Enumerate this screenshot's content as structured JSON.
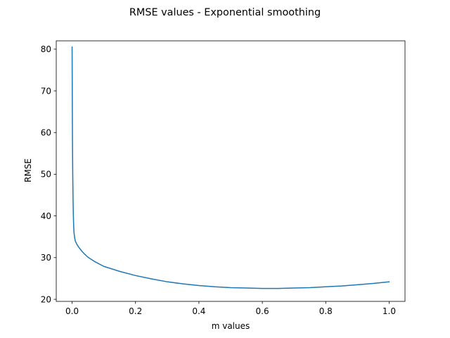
{
  "chart_data": {
    "type": "line",
    "title": "RMSE values - Exponential smoothing",
    "xlabel": "m values",
    "ylabel": "RMSE",
    "xlim": [
      -0.05,
      1.05
    ],
    "ylim": [
      19.5,
      82
    ],
    "xticks": [
      0.0,
      0.2,
      0.4,
      0.6,
      0.8,
      1.0
    ],
    "xtick_labels": [
      "0.0",
      "0.2",
      "0.4",
      "0.6",
      "0.8",
      "1.0"
    ],
    "yticks": [
      20,
      30,
      40,
      50,
      60,
      70,
      80
    ],
    "ytick_labels": [
      "20",
      "30",
      "40",
      "50",
      "60",
      "70",
      "80"
    ],
    "grid": false,
    "legend": "none",
    "series": [
      {
        "color": "#1f77b4",
        "x": [
          0.0,
          0.001,
          0.002,
          0.003,
          0.004,
          0.005,
          0.006,
          0.008,
          0.01,
          0.015,
          0.02,
          0.03,
          0.04,
          0.05,
          0.07,
          0.1,
          0.15,
          0.2,
          0.25,
          0.3,
          0.35,
          0.4,
          0.45,
          0.5,
          0.55,
          0.6,
          0.65,
          0.7,
          0.75,
          0.8,
          0.85,
          0.9,
          0.95,
          1.0
        ],
        "y": [
          80.5,
          60.0,
          50.0,
          44.0,
          40.0,
          37.5,
          36.0,
          34.8,
          34.0,
          33.2,
          32.6,
          31.6,
          30.8,
          30.1,
          29.1,
          27.9,
          26.7,
          25.7,
          24.9,
          24.2,
          23.7,
          23.3,
          23.0,
          22.8,
          22.7,
          22.6,
          22.6,
          22.7,
          22.8,
          23.0,
          23.2,
          23.5,
          23.8,
          24.2
        ]
      }
    ]
  }
}
